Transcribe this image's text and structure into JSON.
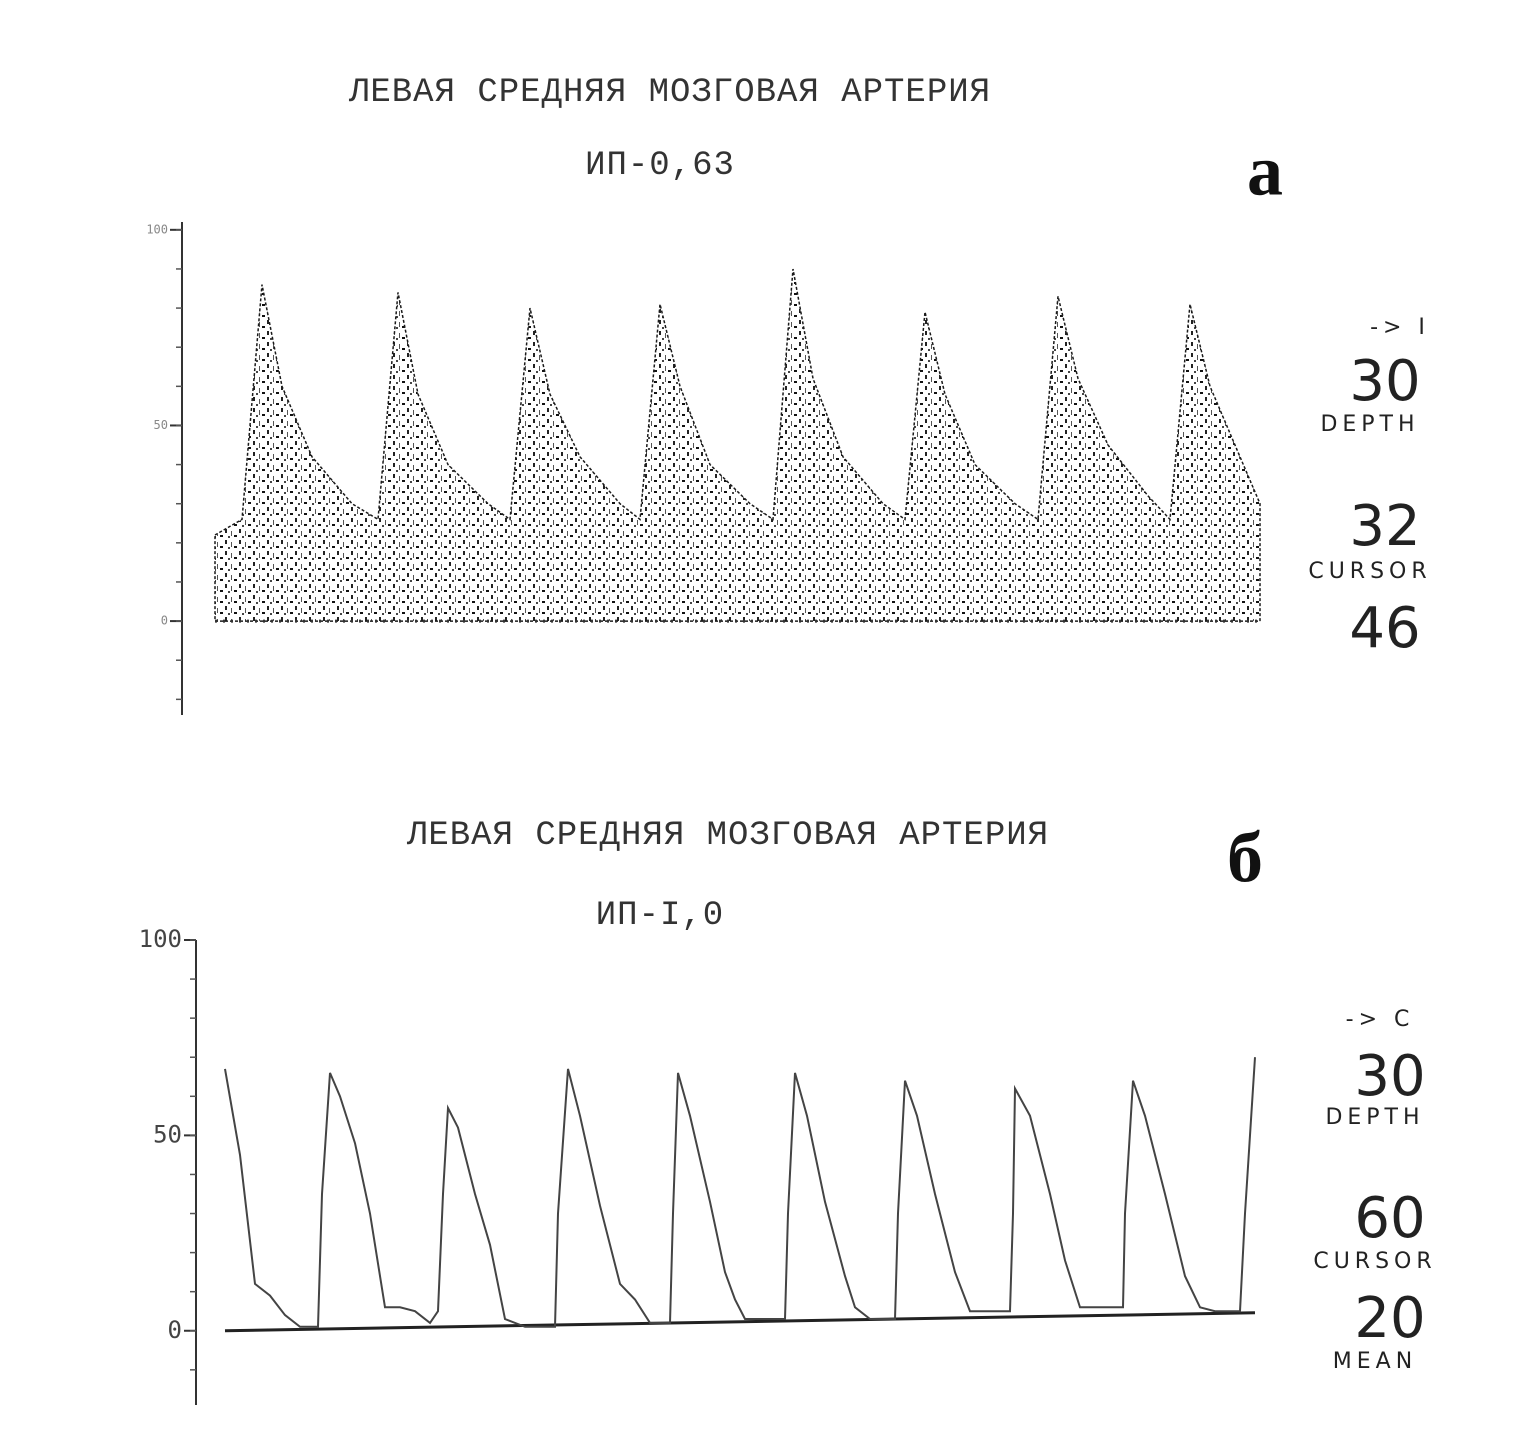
{
  "chart_data": [
    {
      "type": "area",
      "panel": "а",
      "title": "ЛЕВАЯ СРЕДНЯЯ МОЗГОВАЯ АРТЕРИЯ",
      "subtitle": "ИП-0,63",
      "x": [
        0,
        27,
        47,
        67,
        97,
        137,
        163,
        183,
        203,
        233,
        273,
        295,
        315,
        335,
        365,
        405,
        425,
        445,
        465,
        495,
        535,
        558,
        578,
        598,
        628,
        668,
        690,
        710,
        730,
        760,
        800,
        823,
        843,
        863,
        893,
        933,
        955,
        975,
        995,
        1025,
        1045
      ],
      "values": [
        22,
        26,
        86,
        60,
        42,
        30,
        26,
        84,
        58,
        40,
        30,
        26,
        80,
        58,
        42,
        30,
        26,
        81,
        60,
        40,
        30,
        26,
        90,
        62,
        42,
        30,
        26,
        79,
        58,
        40,
        30,
        26,
        83,
        62,
        45,
        32,
        26,
        81,
        60,
        42,
        30
      ],
      "color": "#1a1a1a",
      "xlim": [
        0,
        1045
      ],
      "ylim": [
        -24,
        102
      ],
      "yticks": [
        0,
        50,
        100
      ],
      "mode": "-> I",
      "readouts": [
        {
          "value": 30,
          "label": "DEPTH"
        },
        {
          "value": 32,
          "label": "CURSOR"
        },
        {
          "value": 46
        }
      ]
    },
    {
      "type": "line",
      "panel": "б",
      "title": "ЛЕВАЯ СРЕДНЯЯ МОЗГОВАЯ АРТЕРИЯ",
      "subtitle": "ИП-I,0",
      "x": [
        0,
        15,
        30,
        45,
        60,
        75,
        93,
        97,
        105,
        115,
        130,
        145,
        160,
        175,
        190,
        205,
        213,
        218,
        223,
        233,
        250,
        265,
        280,
        300,
        330,
        333,
        343,
        355,
        375,
        395,
        410,
        425,
        445,
        448,
        453,
        465,
        485,
        500,
        510,
        520,
        560,
        563,
        570,
        582,
        600,
        620,
        630,
        645,
        670,
        673,
        680,
        692,
        710,
        730,
        745,
        785,
        788,
        790,
        805,
        825,
        840,
        855,
        898,
        900,
        908,
        920,
        940,
        960,
        975,
        990,
        1015,
        1020,
        1030
      ],
      "values": [
        67,
        45,
        12,
        9,
        4,
        1,
        1,
        35,
        66,
        60,
        48,
        30,
        6,
        6,
        5,
        2,
        5,
        35,
        57,
        52,
        35,
        22,
        3,
        1,
        1,
        30,
        67,
        55,
        32,
        12,
        8,
        2,
        2,
        30,
        66,
        55,
        33,
        15,
        8,
        3,
        3,
        30,
        66,
        55,
        33,
        14,
        6,
        3,
        3,
        30,
        64,
        55,
        35,
        15,
        5,
        5,
        30,
        62,
        55,
        35,
        18,
        6,
        6,
        30,
        64,
        55,
        35,
        14,
        6,
        5,
        5,
        30,
        70
      ],
      "color": "#444444",
      "xlim": [
        0,
        1030
      ],
      "ylim": [
        -19,
        100
      ],
      "yticks": [
        0,
        50,
        100
      ],
      "mode": "-> C",
      "readouts": [
        {
          "value": 30,
          "label": "DEPTH"
        },
        {
          "value": 60,
          "label": "CURSOR"
        },
        {
          "value": 20,
          "label": "MEAN"
        }
      ]
    }
  ]
}
